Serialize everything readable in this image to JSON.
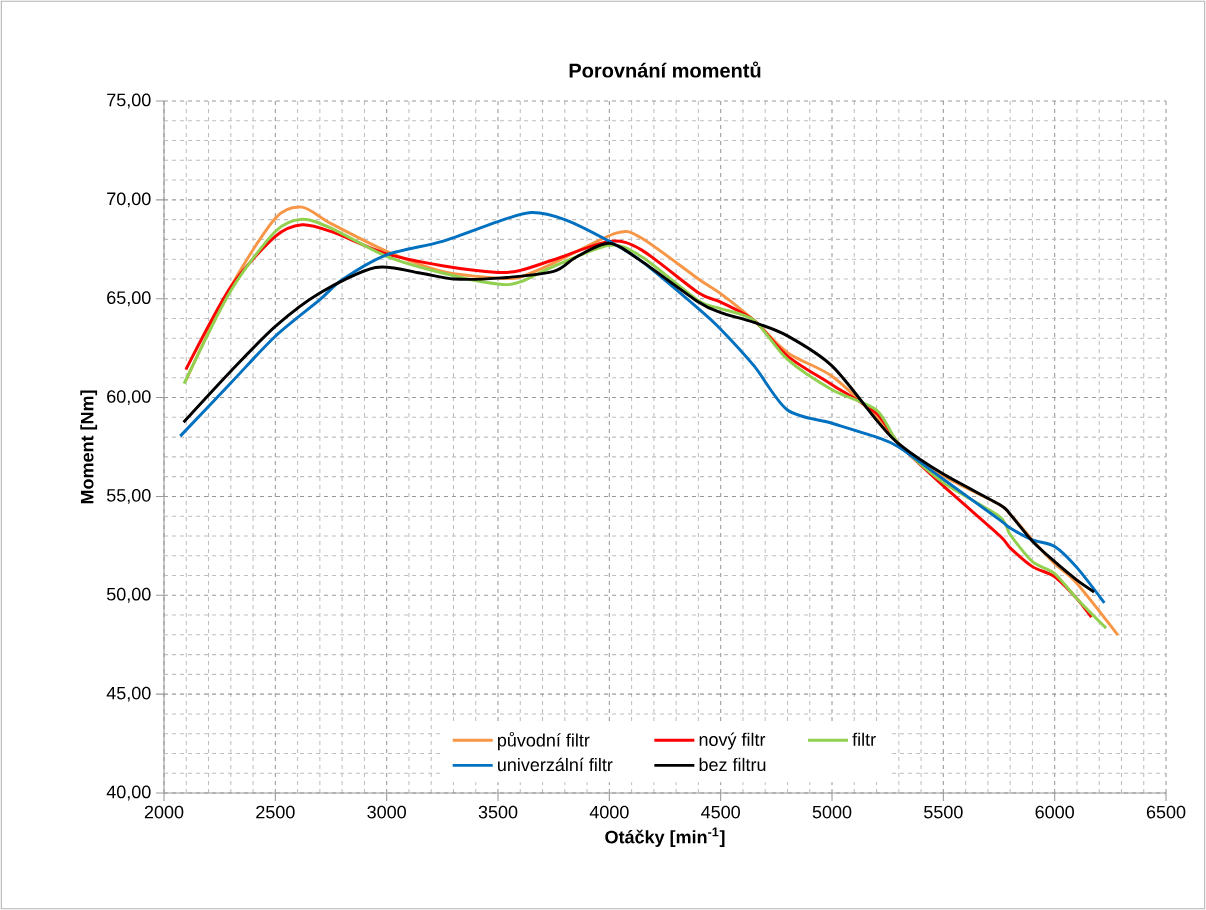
{
  "chart_data": {
    "type": "line",
    "title": "Porovnání momentů",
    "xlabel": "Otáčky [min$^{-1}$]",
    "ylabel": "Moment [Nm]",
    "xlim": [
      2000,
      6500
    ],
    "xticks": [
      2000,
      2500,
      3000,
      3500,
      4000,
      4500,
      5000,
      5500,
      6000,
      6500
    ],
    "ylim": [
      40,
      75
    ],
    "yticks": [
      {
        "value": 40,
        "label": "40,00"
      },
      {
        "value": 45,
        "label": "45,00"
      },
      {
        "value": 50,
        "label": "50,00"
      },
      {
        "value": 55,
        "label": "55,00"
      },
      {
        "value": 60,
        "label": "60,00"
      },
      {
        "value": 65,
        "label": "65,00"
      },
      {
        "value": 70,
        "label": "70,00"
      },
      {
        "value": 75,
        "label": "75,00"
      }
    ],
    "grid": true,
    "legend": "bottom",
    "line_style": "solid",
    "series": [
      {
        "name": "původní filtr",
        "color": "#f79646",
        "x": [
          2100,
          2300,
          2500,
          2620,
          2750,
          3000,
          3250,
          3500,
          3600,
          3750,
          4030,
          4144,
          4400,
          4500,
          4650,
          4800,
          5000,
          5200,
          5300,
          5500,
          5750,
          5800,
          5900,
          6000,
          6100,
          6284
        ],
        "values": [
          60.9,
          65.6,
          69.07,
          69.63,
          68.8,
          67.4,
          66.38,
          66.04,
          66.1,
          66.8,
          68.32,
          68.07,
          66.0,
          65.26,
          63.9,
          62.27,
          61.08,
          59.0,
          57.66,
          56.04,
          54.6,
          54.1,
          52.8,
          51.6,
          50.6,
          47.99
        ]
      },
      {
        "name": "nový filtr",
        "color": "#ff0000",
        "x": [
          2098,
          2300,
          2500,
          2620,
          2750,
          3000,
          3250,
          3500,
          3600,
          3750,
          4000,
          4144,
          4400,
          4500,
          4650,
          4800,
          5000,
          5200,
          5300,
          5500,
          5750,
          5800,
          5900,
          6000,
          6100,
          6165
        ],
        "values": [
          61.41,
          65.6,
          68.15,
          68.74,
          68.4,
          67.27,
          66.67,
          66.33,
          66.43,
          66.97,
          67.9,
          67.47,
          65.3,
          64.83,
          63.9,
          62.1,
          60.65,
          59.2,
          57.66,
          55.53,
          53.05,
          52.4,
          51.45,
          50.94,
          49.83,
          48.89
        ]
      },
      {
        "name": "filtr",
        "color": "#92d050",
        "x": [
          2090,
          2300,
          2500,
          2620,
          2750,
          3000,
          3250,
          3500,
          3600,
          3750,
          4000,
          4144,
          4400,
          4500,
          4650,
          4800,
          5000,
          5200,
          5300,
          5500,
          5750,
          5800,
          5900,
          6000,
          6100,
          6231
        ],
        "values": [
          60.7,
          65.4,
          68.4,
          69.02,
          68.57,
          67.14,
          66.3,
          65.74,
          65.85,
          66.63,
          67.7,
          67.13,
          64.9,
          64.5,
          63.9,
          61.93,
          60.4,
          59.37,
          57.66,
          55.7,
          54.0,
          53.07,
          51.7,
          51.1,
          49.83,
          48.34
        ]
      },
      {
        "name": "univerzální filtr",
        "color": "#0070c0",
        "x": [
          2073,
          2300,
          2500,
          2700,
          2800,
          3000,
          3250,
          3500,
          3650,
          3800,
          4000,
          4144,
          4400,
          4500,
          4650,
          4800,
          5000,
          5200,
          5300,
          5500,
          5750,
          5800,
          5900,
          6000,
          6100,
          6223
        ],
        "values": [
          58.05,
          60.74,
          63.1,
          64.95,
          65.96,
          67.22,
          67.9,
          68.9,
          69.36,
          69.0,
          67.9,
          66.9,
          64.5,
          63.46,
          61.6,
          59.37,
          58.7,
          58.0,
          57.5,
          55.87,
          53.84,
          53.4,
          52.8,
          52.47,
          51.4,
          49.62
        ]
      },
      {
        "name": "bez filtru",
        "color": "#000000",
        "x": [
          2088,
          2300,
          2500,
          2700,
          2950,
          3150,
          3300,
          3500,
          3750,
          3850,
          4000,
          4144,
          4400,
          4500,
          4650,
          4800,
          5000,
          5200,
          5300,
          5500,
          5750,
          5800,
          5900,
          6000,
          6100,
          6177
        ],
        "values": [
          58.75,
          61.33,
          63.6,
          65.29,
          66.58,
          66.3,
          66.0,
          66.04,
          66.38,
          67.1,
          67.8,
          66.9,
          64.83,
          64.3,
          63.8,
          63.12,
          61.6,
          58.86,
          57.66,
          56.13,
          54.6,
          54.1,
          52.73,
          51.7,
          50.77,
          50.17
        ]
      }
    ]
  }
}
